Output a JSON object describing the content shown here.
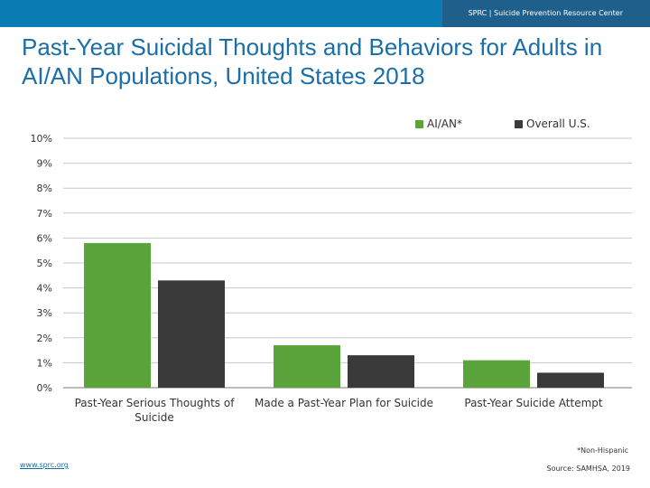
{
  "header": {
    "brand_text": "SPRC  |  Suicide Prevention Resource Center",
    "bar_color": "#1f5f8b",
    "accent_color": "#0b7db5"
  },
  "slide": {
    "title": "Past-Year Suicidal Thoughts and Behaviors for Adults in AI/AN Populations, United States 2018"
  },
  "chart_data": {
    "type": "bar",
    "title": "",
    "categories": [
      "Past-Year Serious Thoughts of Suicide",
      "Made a Past-Year Plan for Suicide",
      "Past-Year Suicide Attempt"
    ],
    "series": [
      {
        "name": "AI/AN*",
        "color": "#5aa43b",
        "values": [
          5.8,
          1.7,
          1.1
        ]
      },
      {
        "name": "Overall U.S.",
        "color": "#3a3a3a",
        "values": [
          4.3,
          1.3,
          0.6
        ]
      }
    ],
    "ylim": [
      0,
      10
    ],
    "yticks": [
      "0%",
      "1%",
      "2%",
      "3%",
      "4%",
      "5%",
      "6%",
      "7%",
      "8%",
      "9%",
      "10%"
    ],
    "xlabel": "",
    "ylabel": "",
    "grid": true,
    "legend_position": "top-right"
  },
  "footer": {
    "note": "*Non-Hispanic",
    "source": "Source: SAMHSA, 2019",
    "url": "www.sprc.org"
  }
}
